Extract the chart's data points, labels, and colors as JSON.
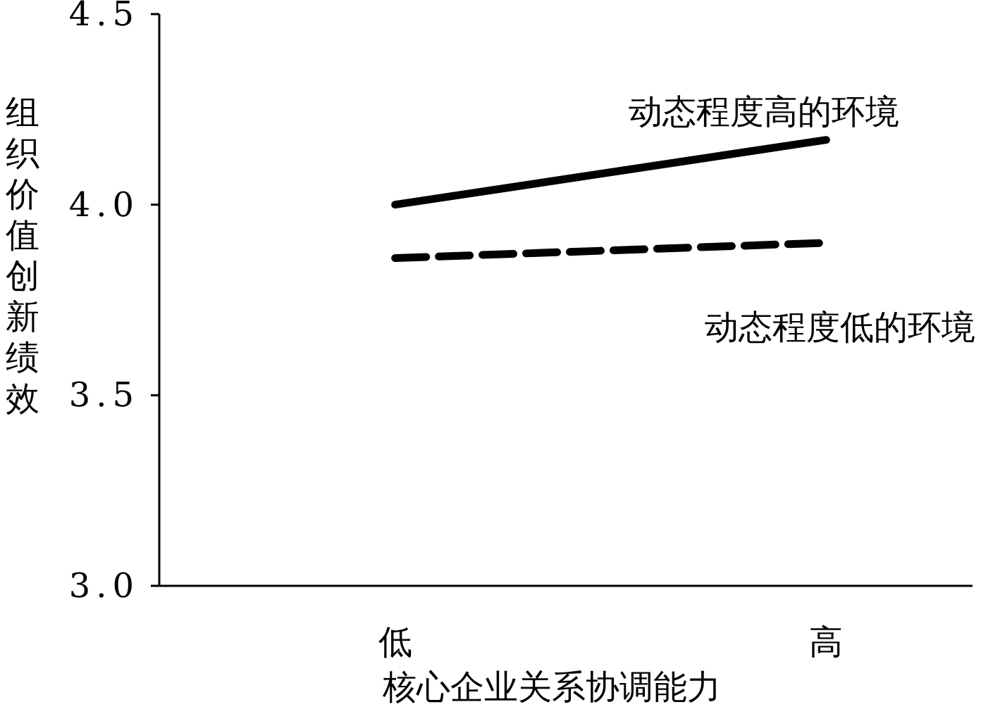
{
  "chart_data": {
    "type": "line",
    "xlabel": "核心企业关系协调能力",
    "ylabel": "组织价值创新绩效",
    "categories": [
      "低",
      "高"
    ],
    "series": [
      {
        "name": "动态程度高的环境",
        "color": "#000000",
        "line_style": "solid",
        "values": [
          4.0,
          4.17
        ]
      },
      {
        "name": "动态程度低的环境",
        "color": "#000000",
        "line_style": "dashed",
        "values": [
          3.86,
          3.9
        ]
      }
    ],
    "ylim": [
      3.0,
      4.5
    ],
    "yticks": [
      {
        "value": 3.0,
        "label": "3.0"
      },
      {
        "value": 3.5,
        "label": "3.5"
      },
      {
        "value": 4.0,
        "label": "4.0"
      },
      {
        "value": 4.5,
        "label": "4.5"
      }
    ],
    "marker": "none"
  }
}
